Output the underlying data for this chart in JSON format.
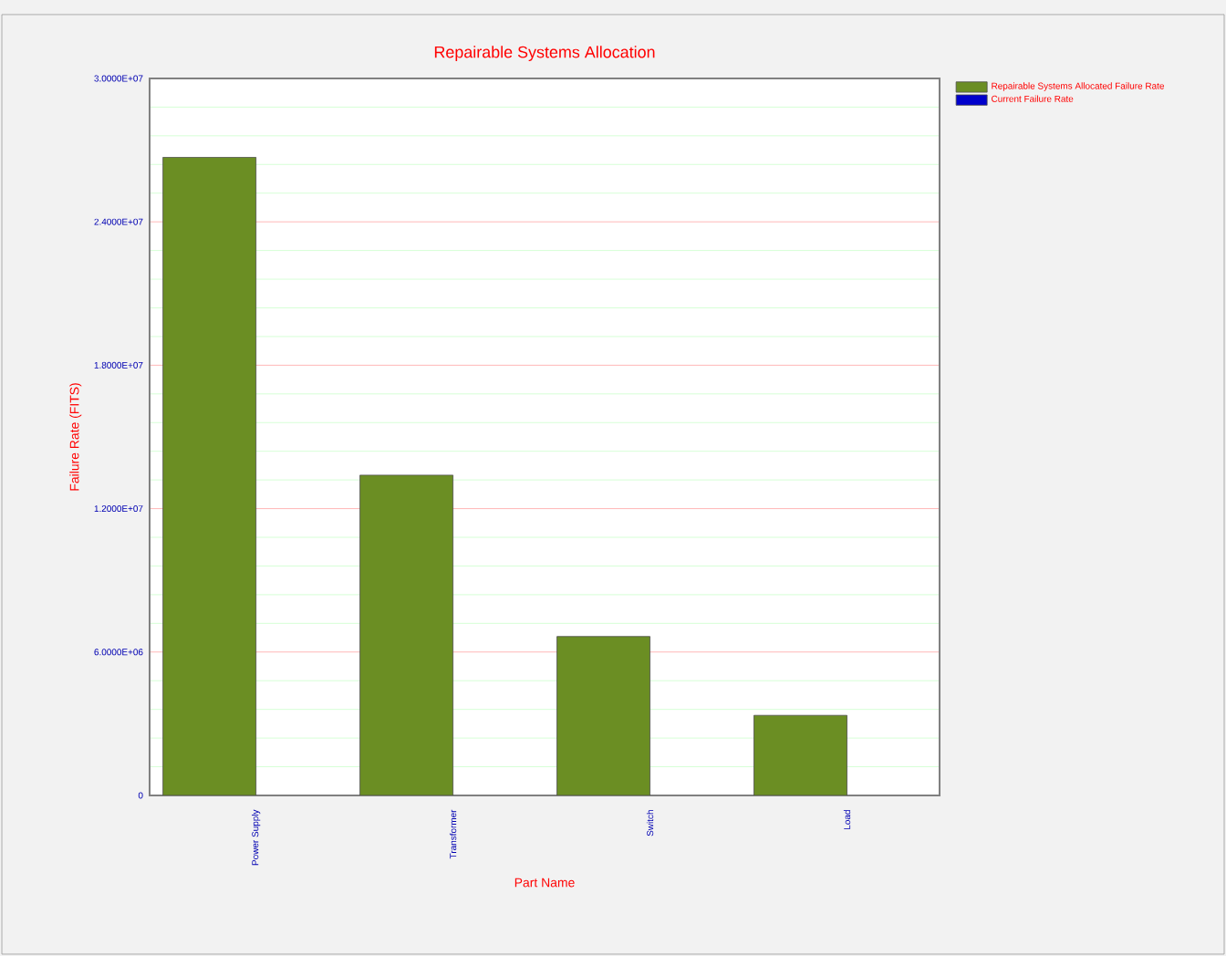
{
  "chart_data": {
    "type": "bar",
    "title": "Repairable Systems Allocation",
    "xlabel": "Part Name",
    "ylabel": "Failure Rate (FITS)",
    "categories": [
      "Power Supply",
      "Transformer",
      "Switch",
      "Load"
    ],
    "series": [
      {
        "name": "Repairable Systems Allocated Failure Rate",
        "color": "#6b8e23",
        "values": [
          26700000,
          13400000,
          6650000,
          3350000
        ]
      },
      {
        "name": "Current Failure Rate",
        "color": "#0000cc",
        "values": [
          null,
          null,
          null,
          null
        ]
      }
    ],
    "ylim": [
      0,
      30000000
    ],
    "yticks": [
      0,
      {
        "value": 1200000,
        "label": null
      },
      {
        "value": 2400000,
        "label": null
      },
      {
        "value": 3600000,
        "label": null
      },
      {
        "value": 4800000,
        "label": null
      },
      {
        "value": 6000000,
        "label": "6.0000E+06"
      },
      {
        "value": 7200000,
        "label": null
      },
      {
        "value": 8400000,
        "label": null
      },
      {
        "value": 9600000,
        "label": null
      },
      {
        "value": 10800000,
        "label": null
      },
      {
        "value": 12000000,
        "label": "1.2000E+07"
      },
      {
        "value": 13200000,
        "label": null
      },
      {
        "value": 14400000,
        "label": null
      },
      {
        "value": 15600000,
        "label": null
      },
      {
        "value": 16800000,
        "label": null
      },
      {
        "value": 18000000,
        "label": "1.8000E+07"
      },
      {
        "value": 19200000,
        "label": null
      },
      {
        "value": 20400000,
        "label": null
      },
      {
        "value": 21600000,
        "label": null
      },
      {
        "value": 22800000,
        "label": null
      },
      {
        "value": 24000000,
        "label": "2.4000E+07"
      },
      {
        "value": 25200000,
        "label": null
      },
      {
        "value": 26400000,
        "label": null
      },
      {
        "value": 27600000,
        "label": null
      },
      {
        "value": 28800000,
        "label": null
      },
      {
        "value": 30000000,
        "label": "3.0000E+07"
      }
    ],
    "grid": true,
    "legend": "top right"
  }
}
